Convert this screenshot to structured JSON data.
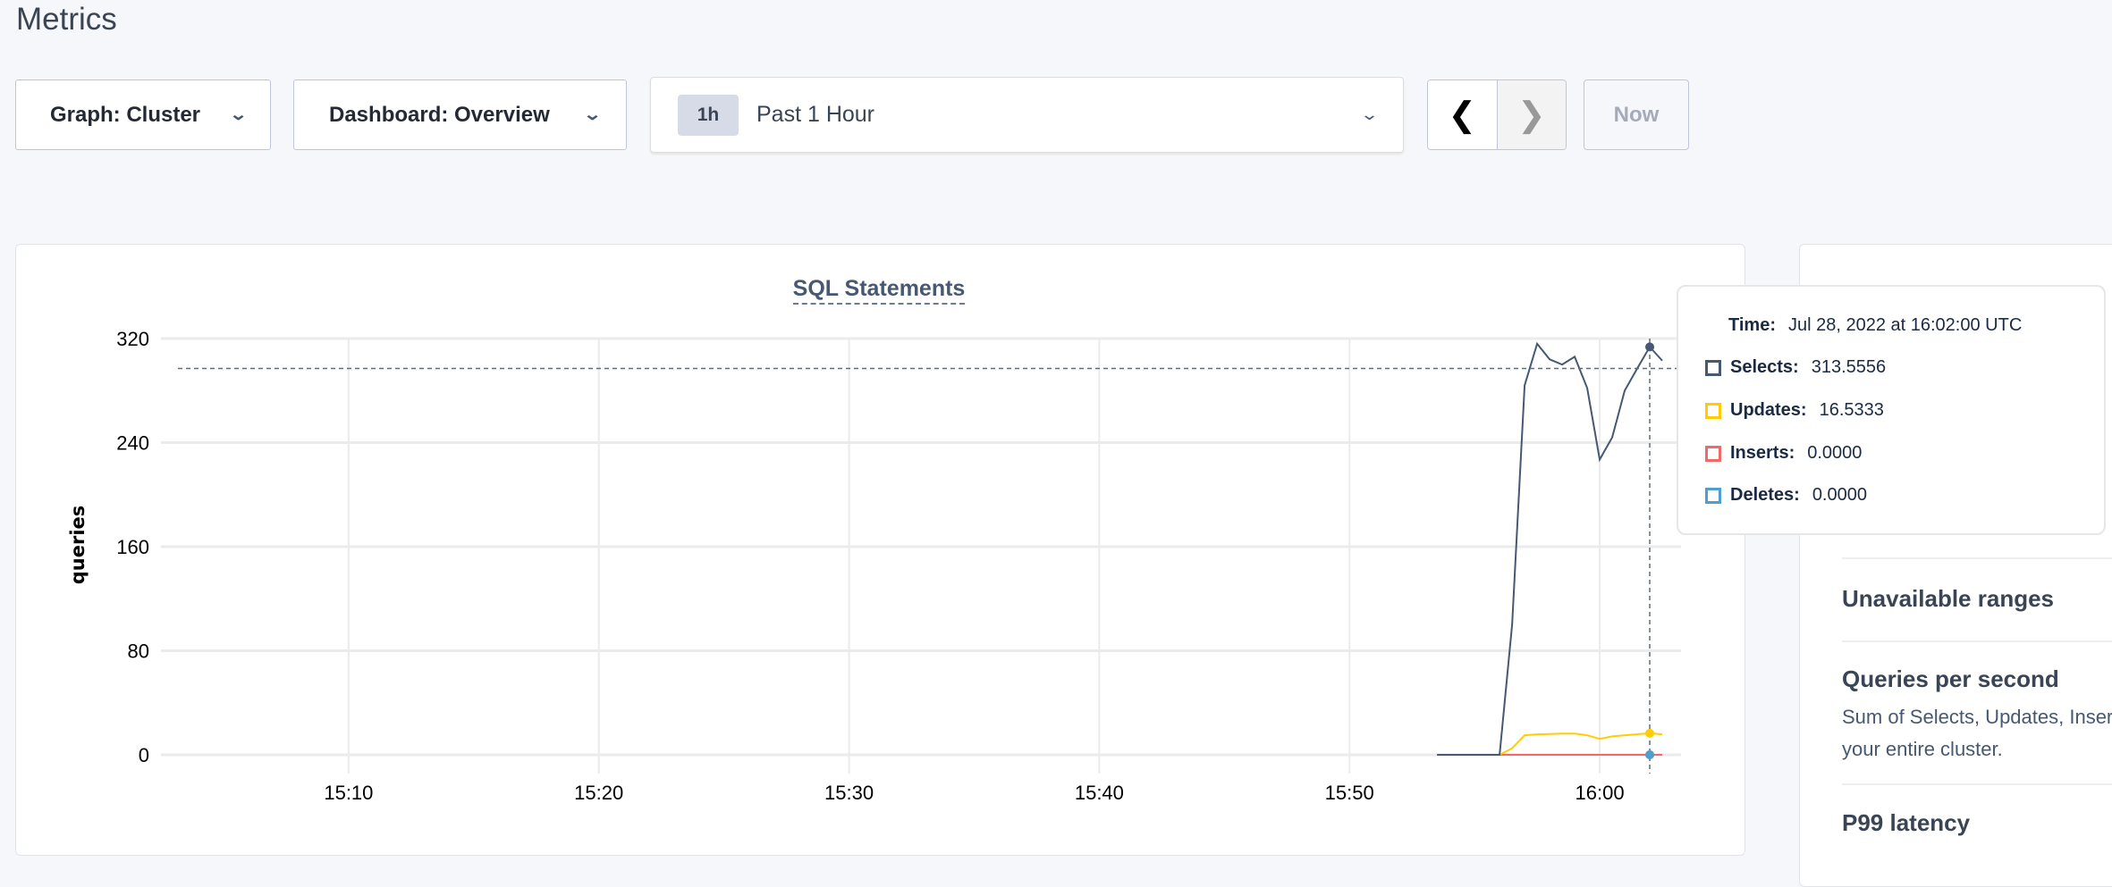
{
  "page_title": "Metrics",
  "toolbar": {
    "graph_label": "Graph: Cluster",
    "dashboard_label": "Dashboard: Overview",
    "time_badge": "1h",
    "time_label": "Past 1 Hour",
    "prev_icon": "chevron-left-icon",
    "next_icon": "chevron-right-icon",
    "now_label": "Now"
  },
  "right_panel": {
    "items": [
      {
        "title": "Unavailable ranges"
      },
      {
        "title": "Queries per second",
        "desc_line1": "Sum of Selects, Updates, Inser",
        "desc_line2": "your entire cluster."
      },
      {
        "title": "P99 latency"
      }
    ]
  },
  "tooltip": {
    "time_label": "Time:",
    "time_value": "Jul 28, 2022 at 16:02:00 UTC",
    "rows": [
      {
        "label": "Selects:",
        "value": "313.5556"
      },
      {
        "label": "Updates:",
        "value": "16.5333"
      },
      {
        "label": "Inserts:",
        "value": "0.0000"
      },
      {
        "label": "Deletes:",
        "value": "0.0000"
      }
    ]
  },
  "chart_data": {
    "type": "line",
    "title": "SQL Statements",
    "ylabel": "queries",
    "xlabel": "",
    "ylim": [
      0,
      320
    ],
    "yticks": [
      "0",
      "80",
      "160",
      "240",
      "320"
    ],
    "xticks": [
      "15:10",
      "15:20",
      "15:30",
      "15:40",
      "15:50",
      "16:00"
    ],
    "xlim": [
      "15:02:30",
      "16:03:15"
    ],
    "grid": true,
    "x": [
      "15:53:30",
      "15:54:00",
      "15:55:00",
      "15:56:00",
      "15:56:30",
      "15:57:00",
      "15:57:30",
      "15:58:00",
      "15:58:30",
      "15:59:00",
      "15:59:30",
      "16:00:00",
      "16:00:30",
      "16:01:00",
      "16:01:30",
      "16:02:00",
      "16:02:30"
    ],
    "series": [
      {
        "name": "Selects",
        "color": "#475872",
        "values": [
          0,
          0,
          0,
          0,
          100,
          284,
          316,
          304,
          300,
          306,
          282,
          227,
          244,
          280,
          297,
          313.5556,
          303
        ]
      },
      {
        "name": "Updates",
        "color": "#ffcd02",
        "values": [
          0,
          0,
          0,
          0,
          5,
          15,
          15.7,
          16,
          16.3,
          16.3,
          15,
          12.2,
          14.2,
          15,
          15.8,
          16.5333,
          15.7
        ]
      },
      {
        "name": "Inserts",
        "color": "#f16969",
        "values": [
          0,
          0,
          0,
          0,
          0,
          0,
          0,
          0,
          0,
          0,
          0,
          0,
          0,
          0,
          0,
          0,
          0
        ]
      },
      {
        "name": "Deletes",
        "color": "#4e9fd1",
        "values": [
          0,
          0,
          0,
          0,
          0,
          0,
          0,
          0,
          0,
          0,
          0,
          0,
          0,
          0,
          0,
          0,
          0
        ]
      }
    ],
    "hover": {
      "x": "16:02:00",
      "y": 297
    }
  }
}
